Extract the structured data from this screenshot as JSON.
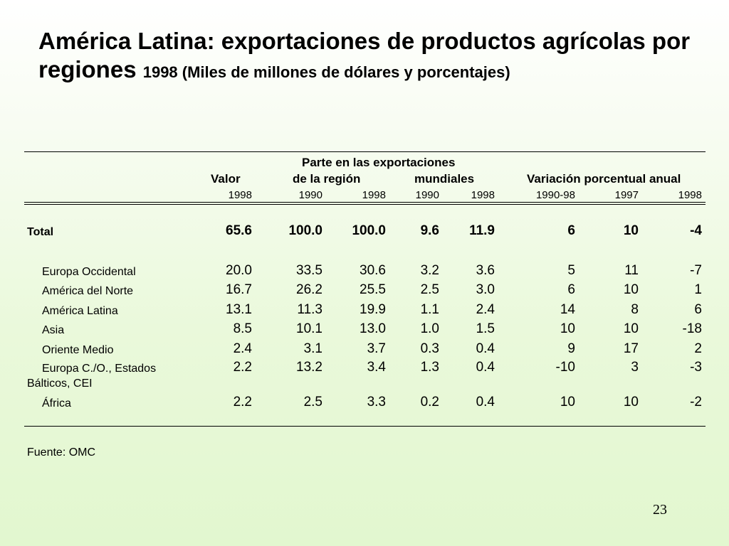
{
  "title": {
    "main": "América Latina: exportaciones de productos agrícolas por regiones",
    "sub": "1998 (Miles de millones de dólares y porcentajes)"
  },
  "table": {
    "group_header": "Parte en las exportaciones",
    "col_groups": [
      "Valor",
      "de la región",
      "mundiales",
      "Variación porcentual anual"
    ],
    "years": [
      "1998",
      "1990",
      "1998",
      "1990",
      "1998",
      "1990-98",
      "1997",
      "1998"
    ],
    "total": {
      "label": "Total",
      "values": [
        "65.6",
        "100.0",
        "100.0",
        "9.6",
        "11.9",
        "6",
        "10",
        "-4"
      ]
    },
    "rows": [
      {
        "label": "Europa Occidental",
        "values": [
          "20.0",
          "33.5",
          "30.6",
          "3.2",
          "3.6",
          "5",
          "11",
          "-7"
        ]
      },
      {
        "label": "América del Norte",
        "values": [
          "16.7",
          "26.2",
          "25.5",
          "2.5",
          "3.0",
          "6",
          "10",
          "1"
        ]
      },
      {
        "label": "América Latina",
        "values": [
          "13.1",
          "11.3",
          "19.9",
          "1.1",
          "2.4",
          "14",
          "8",
          "6"
        ]
      },
      {
        "label": "Asia",
        "values": [
          "8.5",
          "10.1",
          "13.0",
          "1.0",
          "1.5",
          "10",
          "10",
          "-18"
        ]
      },
      {
        "label": "Oriente Medio",
        "values": [
          "2.4",
          "3.1",
          "3.7",
          "0.3",
          "0.4",
          "9",
          "17",
          "2"
        ]
      },
      {
        "label": "Europa C./O., Estados",
        "label2": "Bálticos, CEI",
        "values": [
          "2.2",
          "13.2",
          "3.4",
          "1.3",
          "0.4",
          "-10",
          "3",
          "-3"
        ]
      },
      {
        "label": "África",
        "values": [
          "2.2",
          "2.5",
          "3.3",
          "0.2",
          "0.4",
          "10",
          "10",
          "-2"
        ]
      }
    ]
  },
  "source": "Fuente: OMC",
  "page_number": "23"
}
